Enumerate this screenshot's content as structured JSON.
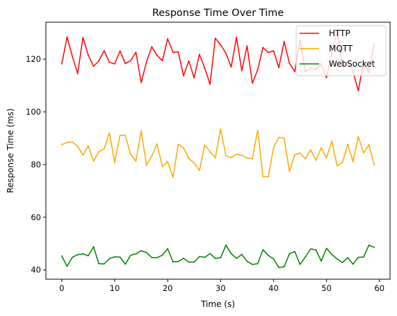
{
  "chart_data": {
    "type": "line",
    "title": "Response Time Over Time",
    "xlabel": "Time (s)",
    "ylabel": "Response Time (ms)",
    "xlim": [
      -3,
      62
    ],
    "ylim": [
      36.5,
      134
    ],
    "xticks": [
      0,
      10,
      20,
      30,
      40,
      50,
      60
    ],
    "yticks": [
      40,
      60,
      80,
      100,
      120
    ],
    "grid": false,
    "legend_position": "top-right",
    "x": [
      0,
      1,
      2,
      3,
      4,
      5,
      6,
      7,
      8,
      9,
      10,
      11,
      12,
      13,
      14,
      15,
      16,
      17,
      18,
      19,
      20,
      21,
      22,
      23,
      24,
      25,
      26,
      27,
      28,
      29,
      30,
      31,
      32,
      33,
      34,
      35,
      36,
      37,
      38,
      39,
      40,
      41,
      42,
      43,
      44,
      45,
      46,
      47,
      48,
      49,
      50,
      51,
      52,
      53,
      54,
      55,
      56,
      57,
      58,
      59
    ],
    "series": [
      {
        "name": "HTTP",
        "color": "#ff0000",
        "values": [
          118.2,
          128.4,
          121.0,
          114.5,
          128.2,
          121.5,
          117.3,
          119.3,
          123.2,
          118.8,
          118.2,
          123.1,
          118.3,
          119.4,
          122.6,
          111.1,
          118.9,
          124.7,
          121.4,
          119.4,
          127.7,
          122.6,
          122.7,
          113.7,
          119.3,
          112.9,
          121.8,
          116.6,
          110.5,
          127.9,
          125.4,
          122.2,
          117.0,
          128.3,
          115.6,
          125.0,
          110.9,
          116.0,
          124.4,
          122.5,
          123.1,
          116.8,
          126.7,
          118.4,
          115.3,
          127.3,
          115.2,
          116.5,
          116.1,
          118.2,
          113.0,
          122.7,
          130.3,
          117.5,
          118.8,
          115.3,
          108.0,
          118.8,
          114.8,
          125.8
        ]
      },
      {
        "name": "MQTT",
        "color": "#ffa500",
        "values": [
          87.6,
          88.4,
          88.6,
          86.9,
          83.6,
          87.1,
          81.3,
          84.8,
          86.0,
          92.0,
          80.8,
          91.1,
          91.0,
          83.9,
          81.3,
          92.7,
          79.7,
          83.3,
          87.8,
          79.2,
          81.1,
          75.1,
          87.7,
          86.3,
          82.3,
          80.6,
          77.8,
          87.4,
          84.9,
          82.6,
          93.5,
          83.4,
          82.6,
          83.9,
          83.5,
          82.5,
          82.2,
          93.0,
          75.5,
          75.3,
          86.5,
          90.3,
          90.0,
          77.4,
          83.7,
          84.4,
          82.2,
          85.6,
          81.6,
          86.3,
          82.6,
          88.9,
          79.5,
          80.7,
          87.7,
          81.1,
          90.6,
          84.4,
          87.5,
          79.9
        ]
      },
      {
        "name": "WebSocket",
        "color": "#008000",
        "values": [
          45.3,
          41.4,
          44.8,
          45.8,
          46.1,
          45.4,
          48.8,
          42.4,
          42.3,
          44.3,
          45.0,
          44.9,
          42.2,
          45.6,
          46.1,
          47.3,
          46.6,
          44.7,
          44.7,
          45.6,
          48.1,
          43.1,
          43.2,
          44.4,
          43.0,
          43.0,
          45.1,
          44.8,
          46.2,
          44.4,
          44.6,
          49.4,
          46.2,
          44.4,
          45.9,
          43.3,
          42.1,
          42.4,
          47.7,
          45.5,
          44.2,
          40.9,
          41.2,
          46.2,
          47.0,
          42.1,
          44.9,
          48.0,
          47.6,
          43.4,
          48.2,
          45.9,
          44.2,
          42.8,
          44.7,
          42.2,
          44.8,
          44.9,
          49.4,
          48.6
        ]
      }
    ]
  }
}
